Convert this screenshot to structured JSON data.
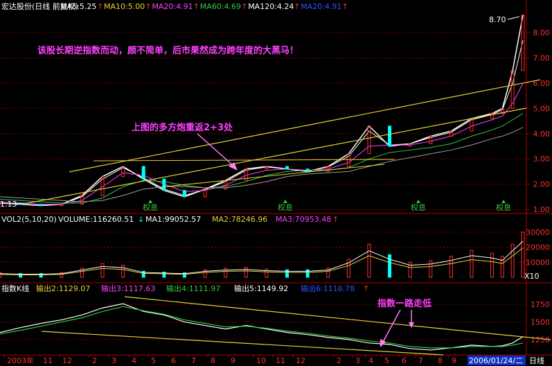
{
  "colors": {
    "up": "#ff3030",
    "down": "#00ffff",
    "yellow": "#e6d23a",
    "magenta": "#ff40ff",
    "green": "#2ecc40",
    "blue": "#3050ff",
    "white": "#ffffff",
    "gray": "#a0a0a0",
    "grid": "#8a0000",
    "axis": "#b00000"
  },
  "price_header": {
    "name": "宏达股份(日线 前复权)",
    "ma5": "MA5:5.25",
    "ma10": "MA10:5.00",
    "ma20": "MA20:4.91",
    "ma60": "MA60:4.69",
    "ma120": "MA120:4.24",
    "ma20b": "MA20:4.91",
    "arrow_up": "↑"
  },
  "vol_header": {
    "vol": "VOL2(5,10,20)",
    "volume": "VOLUME:116260.51",
    "down": "↓",
    "ma1": "MA1:99052.57",
    "ma2": "MA2:78246.96",
    "ma3": "MA3:70953.48",
    "up": "↑"
  },
  "idx_header": {
    "name": "指数K线",
    "o2": "输出2:1129.07",
    "o3": "输出3:1117.63",
    "o4": "输出4:1111.97",
    "o5": "输出5:1149.92",
    "o6": "输出6:1116.78",
    "up": "↑"
  },
  "annotations": {
    "main": "该股长期逆指数而动，颇不简单，后市果然成为跨年度的大黑马！",
    "arrow_note": "上图的多方炮重返2+3处",
    "index_note": "指数一路走低",
    "high": "8.70",
    "low": "1.13",
    "quanxi": "权息"
  },
  "axis": {
    "price_ticks": [
      "8.00",
      "7.00",
      "6.00",
      "5.00",
      "4.00",
      "3.00",
      "2.00",
      "1.00"
    ],
    "vol_ticks": [
      "30000",
      "20000",
      "10000"
    ],
    "vol_unit": "X10",
    "idx_ticks": [
      "1750",
      "1500",
      "1250"
    ],
    "x_labels": [
      "2003年",
      "11",
      "12",
      "2",
      "3",
      "4",
      "5",
      "6",
      "7",
      "8",
      "9",
      "10",
      "11",
      "12",
      "2",
      "3",
      "4",
      "5",
      "6",
      "7",
      "8",
      "9"
    ],
    "date_box": "2006/01/24/二",
    "period": "日线"
  },
  "chart_data": [
    {
      "type": "line",
      "title": "宏达股份(日线 前复权)",
      "ylim": [
        1.0,
        8.8
      ],
      "x": [
        0,
        10,
        20,
        30,
        40,
        50,
        60,
        70,
        80,
        90,
        100,
        110,
        120,
        130,
        140,
        150,
        160,
        170,
        180,
        190,
        200,
        210,
        220,
        230,
        240,
        245,
        250,
        255
      ],
      "series": [
        {
          "name": "close",
          "values": [
            1.25,
            1.2,
            1.15,
            1.2,
            1.55,
            2.3,
            2.7,
            2.2,
            1.75,
            1.5,
            1.8,
            2.15,
            2.6,
            2.7,
            2.6,
            2.5,
            2.7,
            3.2,
            4.3,
            3.5,
            3.6,
            3.9,
            4.1,
            4.6,
            4.8,
            5.0,
            6.5,
            8.7
          ]
        },
        {
          "name": "MA5",
          "values": [
            1.25,
            1.2,
            1.16,
            1.2,
            1.5,
            2.2,
            2.65,
            2.25,
            1.8,
            1.55,
            1.78,
            2.1,
            2.55,
            2.68,
            2.6,
            2.52,
            2.68,
            3.1,
            4.1,
            3.55,
            3.6,
            3.85,
            4.05,
            4.55,
            4.75,
            4.95,
            6.0,
            7.7
          ]
        },
        {
          "name": "MA20",
          "values": [
            1.3,
            1.25,
            1.2,
            1.2,
            1.35,
            1.9,
            2.45,
            2.35,
            2.0,
            1.7,
            1.75,
            1.95,
            2.35,
            2.55,
            2.6,
            2.55,
            2.6,
            2.85,
            3.5,
            3.55,
            3.55,
            3.7,
            3.9,
            4.3,
            4.55,
            4.7,
            5.2,
            6.0
          ]
        },
        {
          "name": "MA60",
          "values": [
            1.4,
            1.35,
            1.3,
            1.25,
            1.25,
            1.45,
            1.9,
            2.15,
            2.1,
            1.95,
            1.85,
            1.9,
            2.1,
            2.35,
            2.5,
            2.55,
            2.55,
            2.65,
            3.0,
            3.25,
            3.35,
            3.45,
            3.6,
            3.9,
            4.15,
            4.3,
            4.55,
            4.8
          ]
        },
        {
          "name": "MA120",
          "values": [
            1.5,
            1.45,
            1.4,
            1.35,
            1.3,
            1.35,
            1.55,
            1.8,
            1.9,
            1.9,
            1.85,
            1.85,
            1.95,
            2.1,
            2.3,
            2.4,
            2.45,
            2.5,
            2.7,
            2.9,
            3.05,
            3.2,
            3.35,
            3.55,
            3.8,
            3.9,
            4.05,
            4.25
          ]
        }
      ]
    },
    {
      "type": "bar",
      "title": "VOL2(5,10,20)",
      "ylim": [
        0,
        35000
      ],
      "x": [
        0,
        10,
        20,
        30,
        40,
        50,
        60,
        70,
        80,
        90,
        100,
        110,
        120,
        130,
        140,
        150,
        160,
        170,
        180,
        190,
        200,
        210,
        220,
        230,
        240,
        245,
        250,
        255
      ],
      "values": [
        3000,
        2500,
        2500,
        3000,
        6000,
        9000,
        8000,
        4000,
        3500,
        3000,
        5000,
        6000,
        6500,
        5500,
        5000,
        5000,
        6000,
        12000,
        22000,
        15000,
        10000,
        11000,
        14000,
        18000,
        16000,
        14000,
        22000,
        30000
      ]
    },
    {
      "type": "line",
      "title": "指数K线",
      "ylim": [
        1050,
        1900
      ],
      "x": [
        0,
        10,
        20,
        30,
        40,
        50,
        60,
        70,
        80,
        90,
        100,
        110,
        120,
        130,
        140,
        150,
        160,
        170,
        180,
        190,
        200,
        210,
        220,
        230,
        240,
        245,
        250,
        255
      ],
      "series": [
        {
          "name": "输出2",
          "values": [
            1350,
            1420,
            1480,
            1530,
            1600,
            1700,
            1760,
            1650,
            1600,
            1500,
            1450,
            1400,
            1450,
            1400,
            1350,
            1320,
            1280,
            1250,
            1200,
            1180,
            1120,
            1100,
            1130,
            1170,
            1150,
            1160,
            1200,
            1290
          ]
        },
        {
          "name": "输出4",
          "values": [
            1330,
            1380,
            1440,
            1500,
            1560,
            1650,
            1720,
            1660,
            1610,
            1530,
            1480,
            1430,
            1440,
            1410,
            1370,
            1340,
            1300,
            1270,
            1230,
            1200,
            1150,
            1130,
            1130,
            1150,
            1150,
            1150,
            1170,
            1200
          ]
        }
      ]
    }
  ]
}
